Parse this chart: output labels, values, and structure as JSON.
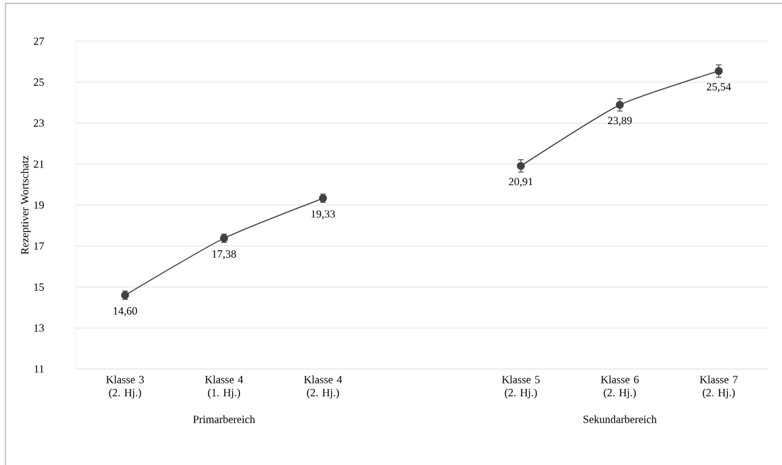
{
  "chart_data": {
    "type": "line",
    "ylabel": "Rezeptiver Wortschatz",
    "categories": [
      "Klasse 3 (2. Hj.)",
      "Klasse 4 (1. Hj.)",
      "Klasse 4 (2. Hj.)",
      null,
      "Klasse 5 (2. Hj.)",
      "Klasse 6 (2. Hj.)",
      "Klasse 7 (2. Hj.)"
    ],
    "series": [
      {
        "color": "#404040",
        "values": [
          14.6,
          17.38,
          19.33,
          null,
          20.91,
          23.89,
          25.54
        ],
        "errors": [
          0.2,
          0.2,
          0.2,
          null,
          0.3,
          0.3,
          0.3
        ],
        "value_labels": [
          "14,60",
          "17,38",
          "19,33",
          null,
          "20,91",
          "23,89",
          "25,54"
        ]
      }
    ],
    "annotations": [
      "Primarbereich",
      "Sekundarbereich"
    ],
    "ylim": [
      11,
      27
    ],
    "yticks": [
      11,
      13,
      15,
      17,
      19,
      21,
      23,
      25,
      27
    ],
    "grid": "y",
    "marker": "circle",
    "line_style": "solid"
  }
}
